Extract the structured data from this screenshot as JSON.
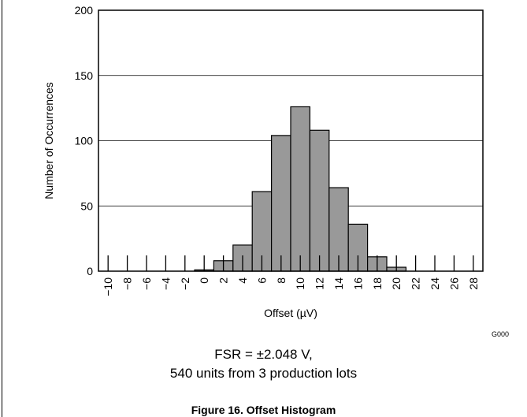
{
  "chart_data": {
    "type": "bar",
    "title": "",
    "xlabel": "Offset (µV)",
    "ylabel": "Number of Occurrences",
    "ylim": [
      0,
      200
    ],
    "yticks": [
      0,
      50,
      100,
      150,
      200
    ],
    "grid": "horizontal",
    "categories": [
      "−10",
      "−8",
      "−6",
      "−4",
      "−2",
      "0",
      "2",
      "4",
      "6",
      "8",
      "10",
      "12",
      "14",
      "16",
      "18",
      "20",
      "22",
      "24",
      "26",
      "28"
    ],
    "values": [
      0,
      0,
      0,
      0,
      0,
      1,
      8,
      20,
      61,
      104,
      126,
      108,
      64,
      36,
      11,
      3,
      0,
      0,
      0,
      0
    ],
    "bar_color": "#999999"
  },
  "figure": {
    "code": "G000",
    "caption_line1": "FSR = ±2.048 V,",
    "caption_line2": "540 units from 3 production lots",
    "title": "Figure 16. Offset Histogram"
  }
}
